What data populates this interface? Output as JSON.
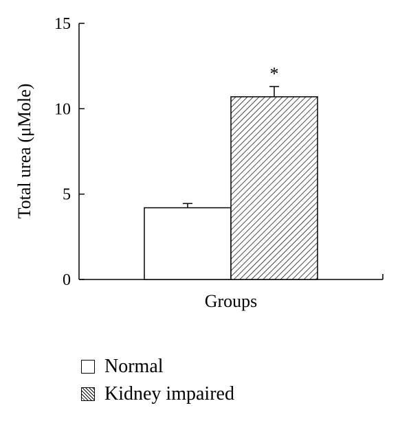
{
  "chart_data": {
    "type": "bar",
    "categories": [
      "Groups"
    ],
    "series": [
      {
        "name": "Normal",
        "value": 4.2,
        "error": 0.25,
        "fill": "white",
        "annotation": ""
      },
      {
        "name": "Kidney impaired",
        "value": 10.7,
        "error": 0.6,
        "fill": "hatched",
        "annotation": "*"
      }
    ],
    "ylabel": "Total urea (μMole)",
    "xlabel": "Groups",
    "ylim": [
      0,
      15
    ],
    "yticks": [
      "0",
      "5",
      "10",
      "15"
    ],
    "grid": false,
    "legend_position": "bottom-left"
  },
  "colors": {
    "bar_stroke": "#000000",
    "background": "#ffffff"
  }
}
